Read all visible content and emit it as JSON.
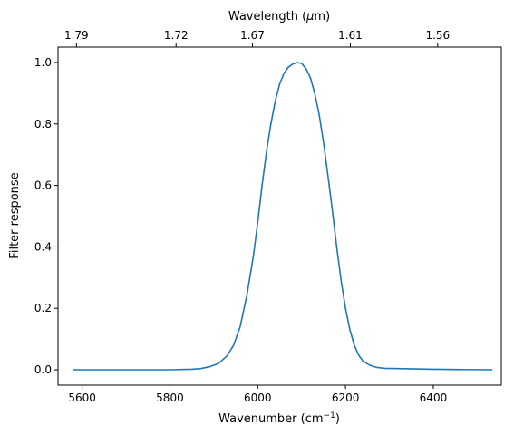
{
  "chart_data": {
    "type": "line",
    "title": "",
    "xlabel": "Wavenumber (cm",
    "xlabel_sup": "−1",
    "xlabel_suffix": ")",
    "ylabel": "Filter response",
    "top_xlabel": "Wavelength (",
    "top_xlabel_mu": "μ",
    "top_xlabel_suffix": "m)",
    "xlim": [
      5545,
      6555
    ],
    "ylim": [
      -0.05,
      1.05
    ],
    "xticks": [
      5600,
      5800,
      6000,
      6200,
      6400
    ],
    "yticks": [
      0.0,
      0.2,
      0.4,
      0.6,
      0.8,
      1.0
    ],
    "top_ticks": [
      {
        "wavenumber": 5587,
        "label": "1.79"
      },
      {
        "wavenumber": 5814,
        "label": "1.72"
      },
      {
        "wavenumber": 5988,
        "label": "1.67"
      },
      {
        "wavenumber": 6211,
        "label": "1.61"
      },
      {
        "wavenumber": 6410,
        "label": "1.56"
      }
    ],
    "grid": false,
    "line_color": "#1f77b4",
    "series": [
      {
        "x": [
          5580,
          5700,
          5800,
          5850,
          5870,
          5890,
          5910,
          5930,
          5945,
          5960,
          5975,
          5990,
          6000,
          6010,
          6020,
          6030,
          6040,
          6050,
          6060,
          6070,
          6080,
          6090,
          6100,
          6110,
          6120,
          6130,
          6140,
          6150,
          6160,
          6170,
          6180,
          6190,
          6200,
          6210,
          6220,
          6230,
          6240,
          6255,
          6270,
          6290,
          6320,
          6400,
          6450,
          6535
        ],
        "y": [
          0.0,
          0.0,
          0.0,
          0.002,
          0.004,
          0.01,
          0.02,
          0.045,
          0.08,
          0.14,
          0.24,
          0.37,
          0.48,
          0.6,
          0.71,
          0.8,
          0.875,
          0.93,
          0.965,
          0.985,
          0.995,
          1.0,
          0.997,
          0.98,
          0.95,
          0.9,
          0.83,
          0.74,
          0.63,
          0.52,
          0.4,
          0.29,
          0.2,
          0.13,
          0.08,
          0.048,
          0.028,
          0.015,
          0.008,
          0.005,
          0.004,
          0.002,
          0.001,
          0.0
        ]
      }
    ]
  }
}
